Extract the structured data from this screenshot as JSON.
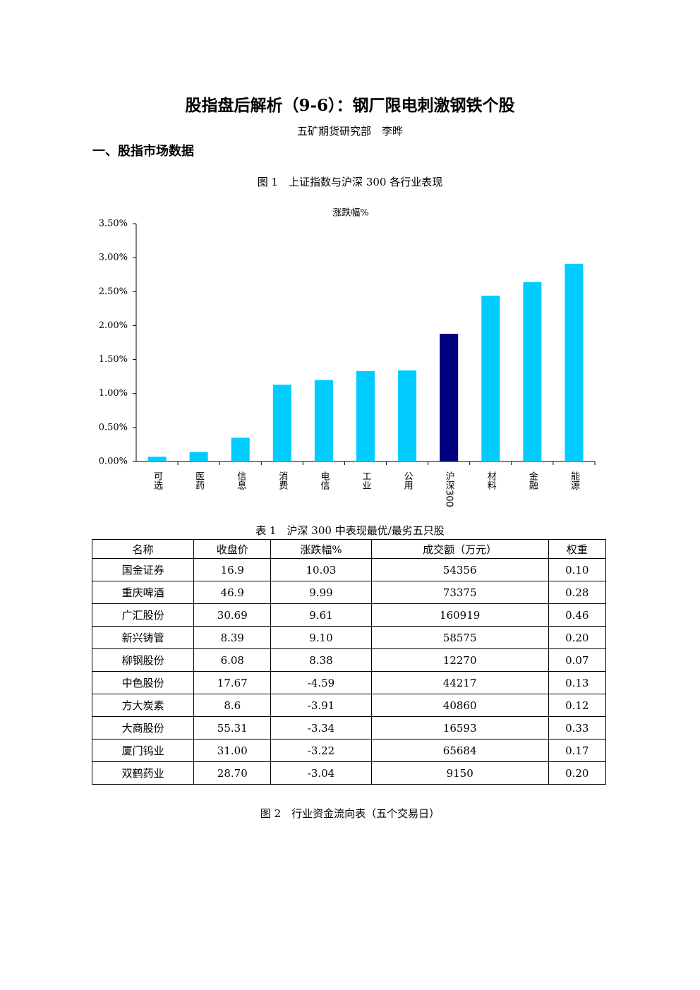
{
  "header": {
    "title": "股指盘后解析（9-6）：钢厂限电刺激钢铁个股",
    "author": "五矿期货研究部　李晔"
  },
  "section": "一、股指市场数据",
  "figure1_caption": "图 1　上证指数与沪深 300 各行业表现",
  "chart_data": {
    "type": "bar",
    "title": "涨跌幅%",
    "categories": [
      "可选",
      "医药",
      "信息",
      "消费",
      "电信",
      "工业",
      "公用",
      "沪深300",
      "材料",
      "金融",
      "能源"
    ],
    "values": [
      0.07,
      0.14,
      0.35,
      1.13,
      1.2,
      1.33,
      1.34,
      1.88,
      2.44,
      2.64,
      2.91
    ],
    "colors": [
      "#00ccff",
      "#00ccff",
      "#00ccff",
      "#00ccff",
      "#00ccff",
      "#00ccff",
      "#00ccff",
      "#000080",
      "#00ccff",
      "#00ccff",
      "#00ccff"
    ],
    "ylim": [
      0,
      3.5
    ],
    "yticks": [
      {
        "value": 0,
        "label": "0.00%"
      },
      {
        "value": 0.5,
        "label": "0.50%"
      },
      {
        "value": 1,
        "label": "1.00%"
      },
      {
        "value": 1.5,
        "label": "1.50%"
      },
      {
        "value": 2,
        "label": "2.00%"
      },
      {
        "value": 2.5,
        "label": "2.50%"
      },
      {
        "value": 3,
        "label": "3.00%"
      },
      {
        "value": 3.5,
        "label": "3.50%"
      }
    ],
    "grid": false
  },
  "table": {
    "caption": "表 1　沪深 300 中表现最优/最劣五只股",
    "columns": [
      "名称",
      "收盘价",
      "涨跌幅%",
      "成交额（万元）",
      "权重"
    ],
    "rows": [
      [
        "国金证券",
        "16.9",
        "10.03",
        "54356",
        "0.10"
      ],
      [
        "重庆啤酒",
        "46.9",
        "9.99",
        "73375",
        "0.28"
      ],
      [
        "广汇股份",
        "30.69",
        "9.61",
        "160919",
        "0.46"
      ],
      [
        "新兴铸管",
        "8.39",
        "9.10",
        "58575",
        "0.20"
      ],
      [
        "柳钢股份",
        "6.08",
        "8.38",
        "12270",
        "0.07"
      ],
      [
        "中色股份",
        "17.67",
        "-4.59",
        "44217",
        "0.13"
      ],
      [
        "方大炭素",
        "8.6",
        "-3.91",
        "40860",
        "0.12"
      ],
      [
        "大商股份",
        "55.31",
        "-3.34",
        "16593",
        "0.33"
      ],
      [
        "厦门钨业",
        "31.00",
        "-3.22",
        "65684",
        "0.17"
      ],
      [
        "双鹤药业",
        "28.70",
        "-3.04",
        "9150",
        "0.20"
      ]
    ]
  },
  "figure2_caption": "图 2　行业资金流向表（五个交易日）"
}
